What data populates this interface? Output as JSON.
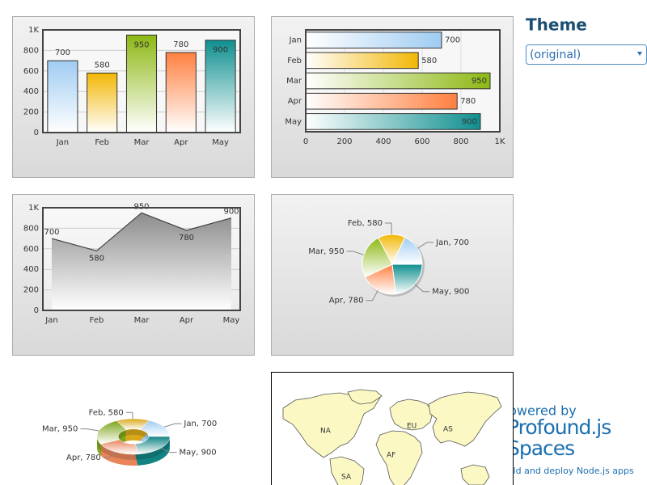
{
  "theme": {
    "title": "Theme",
    "selected": "(original)"
  },
  "branding": {
    "lines": [
      "Powered by",
      "Profound.js",
      "Spaces",
      "Build and deploy Node.js apps"
    ]
  },
  "chart_data": [
    {
      "type": "bar",
      "categories": [
        "Jan",
        "Feb",
        "Mar",
        "Apr",
        "May"
      ],
      "values": [
        700,
        580,
        950,
        780,
        900
      ],
      "colors": [
        "#9fccf2",
        "#f2b705",
        "#8db814",
        "#ff8040",
        "#0f8f8f"
      ],
      "ylim": [
        0,
        1000
      ],
      "yticks": [
        0,
        200,
        400,
        600,
        800,
        {
          "value": 1000,
          "label": "1K"
        }
      ],
      "grid": true
    },
    {
      "type": "barh",
      "categories": [
        "Jan",
        "Feb",
        "Mar",
        "Apr",
        "May"
      ],
      "values": [
        700,
        580,
        950,
        780,
        900
      ],
      "colors": [
        "#9fccf2",
        "#f2b705",
        "#8db814",
        "#ff8040",
        "#0f8f8f"
      ],
      "xlim": [
        0,
        1000
      ],
      "xticks": [
        0,
        200,
        400,
        600,
        800,
        {
          "value": 1000,
          "label": "1K"
        }
      ],
      "grid": true
    },
    {
      "type": "area",
      "categories": [
        "Jan",
        "Feb",
        "Mar",
        "Apr",
        "May"
      ],
      "values": [
        700,
        580,
        950,
        780,
        900
      ],
      "color": "#8c8c8c",
      "ylim": [
        0,
        1000
      ],
      "yticks": [
        0,
        200,
        400,
        600,
        800,
        {
          "value": 1000,
          "label": "1K"
        }
      ],
      "grid": true
    },
    {
      "type": "pie",
      "categories": [
        "Jan",
        "Feb",
        "Mar",
        "Apr",
        "May"
      ],
      "values": [
        700,
        580,
        950,
        780,
        900
      ],
      "value_labels": [
        "Jan, 700",
        "Feb, 580",
        "Mar, 950",
        "Apr, 780",
        "May, 900"
      ],
      "colors": [
        "#9fccf2",
        "#f2b705",
        "#8db814",
        "#ff8040",
        "#0f8f8f"
      ]
    },
    {
      "type": "donut",
      "categories": [
        "Jan",
        "Feb",
        "Mar",
        "Apr",
        "May"
      ],
      "values": [
        700,
        580,
        950,
        780,
        900
      ],
      "value_labels": [
        "Jan, 700",
        "Feb, 580",
        "Mar, 950",
        "Apr, 780",
        "May, 900"
      ],
      "colors": [
        "#9fccf2",
        "#d9a81a",
        "#7ea61c",
        "#e8855a",
        "#128383"
      ]
    }
  ],
  "map": {
    "labels": [
      "NA",
      "EU",
      "AS",
      "AF",
      "SA"
    ]
  }
}
